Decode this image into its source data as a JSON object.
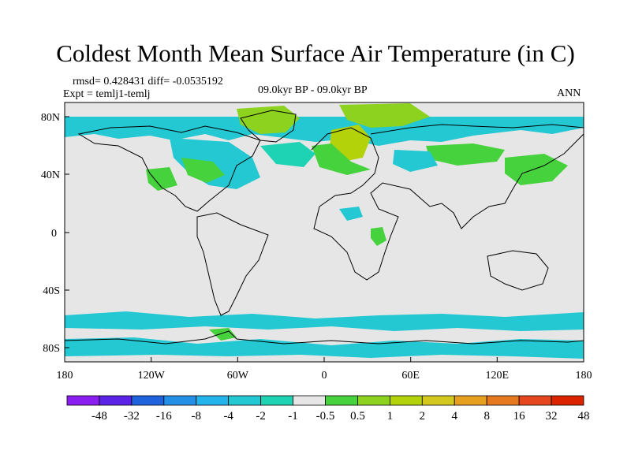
{
  "title": "Coldest Month Mean Surface Air Temperature (in C)",
  "stats": {
    "rmsd_line": "rmsd= 0.428431 diff= -0.0535192",
    "expt_line": "Expt = temlj1-temlj",
    "period": "09.0kyr BP - 09.0kyr BP",
    "season": "ANN"
  },
  "axes": {
    "lat_labels": [
      "80N",
      "40N",
      "0",
      "40S",
      "80S"
    ],
    "lon_labels": [
      "180",
      "120W",
      "60W",
      "0",
      "60E",
      "120E",
      "180"
    ]
  },
  "colorbar": {
    "colors": [
      "#8a1ef0",
      "#5a23e6",
      "#1e62dc",
      "#2390e6",
      "#23b4eb",
      "#23c8d2",
      "#1ed2b4",
      "#e6e6e6",
      "#46d23c",
      "#8cd21e",
      "#b4d20a",
      "#d2c81e",
      "#e6a01e",
      "#e6781e",
      "#e6461e",
      "#dc2300"
    ],
    "labels": [
      "-48",
      "-32",
      "-16",
      "-8",
      "-4",
      "-2",
      "-1",
      "-0.5",
      "0.5",
      "1",
      "2",
      "4",
      "8",
      "16",
      "32",
      "48"
    ]
  },
  "map_colors": {
    "background": "#e6e6e6",
    "cyan": "#23c8d2",
    "teal": "#1ed2b4",
    "green": "#46d23c",
    "yellowgreen": "#8cd21e",
    "yellow": "#b4d20a",
    "coast": "#000000"
  }
}
